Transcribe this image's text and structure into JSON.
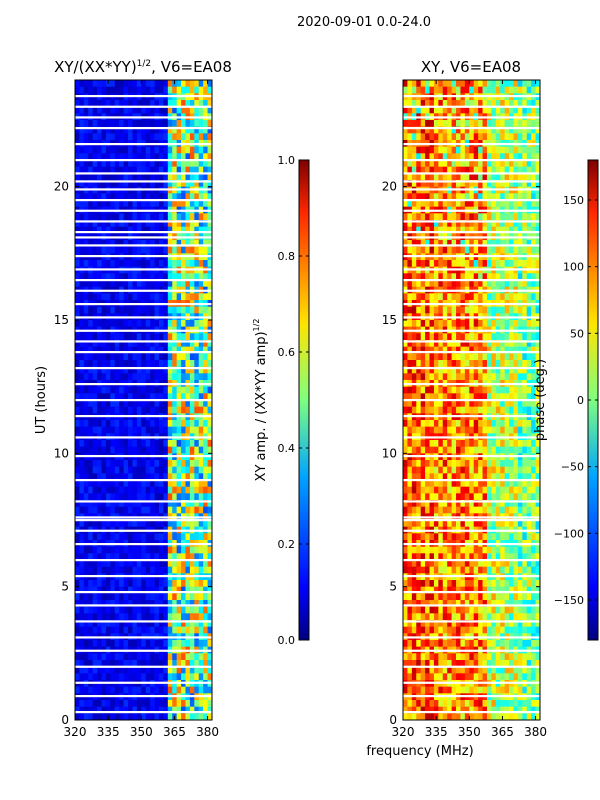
{
  "suptitle": "2020-09-01 0.0-24.0",
  "shared_xlabel": "frequency (MHz)",
  "colors": {
    "jet_0": "#00007f",
    "jet_1": "#0000ff",
    "jet_2": "#00a4ff",
    "jet_3": "#7fff7f",
    "jet_4": "#ffe400",
    "jet_5": "#ff2800",
    "jet_6": "#7f0000",
    "background": "#ffffff"
  },
  "chart_data": [
    {
      "type": "heatmap",
      "name": "amplitude",
      "title": "XY/(XX*YY)",
      "title_superscript": "1/2",
      "title_suffix": ", V6=EA08",
      "xlabel": "",
      "ylabel": "UT (hours)",
      "xlim": [
        320,
        382
      ],
      "ylim": [
        0,
        24
      ],
      "xticks": [
        "320",
        "335",
        "350",
        "365",
        "380"
      ],
      "xtick_values": [
        320,
        335,
        350,
        365,
        380
      ],
      "yticks": [
        "0",
        "5",
        "10",
        "15",
        "20"
      ],
      "ytick_values": [
        0,
        5,
        10,
        15,
        20
      ],
      "colorbar": {
        "label_main": "XY amp. / (XX*YY amp)",
        "label_superscript": "1/2",
        "range": [
          0.0,
          1.0
        ],
        "ticks": [
          "0.0",
          "0.2",
          "0.4",
          "0.6",
          "0.8",
          "1.0"
        ],
        "tick_values": [
          0.0,
          0.2,
          0.4,
          0.6,
          0.8,
          1.0
        ]
      }
    },
    {
      "type": "heatmap",
      "name": "phase",
      "title": "XY, V6=EA08",
      "xlabel": "frequency (MHz)",
      "ylabel": "",
      "xlim": [
        320,
        382
      ],
      "ylim": [
        0,
        24
      ],
      "xticks": [
        "320",
        "335",
        "350",
        "365",
        "380"
      ],
      "xtick_values": [
        320,
        335,
        350,
        365,
        380
      ],
      "yticks": [
        "0",
        "5",
        "10",
        "15",
        "20"
      ],
      "ytick_values": [
        0,
        5,
        10,
        15,
        20
      ],
      "colorbar": {
        "label": "phase (deg.)",
        "range": [
          -180,
          180
        ],
        "ticks": [
          "−150",
          "−100",
          "−50",
          "0",
          "50",
          "100",
          "150"
        ],
        "tick_values": [
          -150,
          -100,
          -50,
          0,
          50,
          100,
          150
        ]
      }
    }
  ],
  "flagged_gaps_hours": [
    0.3,
    0.9,
    1.4,
    2.0,
    2.6,
    3.1,
    3.7,
    4.3,
    4.8,
    5.4,
    6.0,
    6.6,
    7.1,
    7.5,
    7.6,
    8.2,
    9.0,
    9.9,
    10.6,
    11.4,
    12.0,
    12.6,
    13.2,
    13.8,
    14.2,
    14.6,
    15.1,
    15.6,
    16.1,
    16.5,
    16.9,
    17.4,
    17.8,
    18.1,
    18.3,
    18.7,
    19.1,
    19.5,
    19.9,
    20.2,
    20.5,
    21.0,
    21.6,
    22.2,
    22.6,
    23.0,
    23.4
  ]
}
